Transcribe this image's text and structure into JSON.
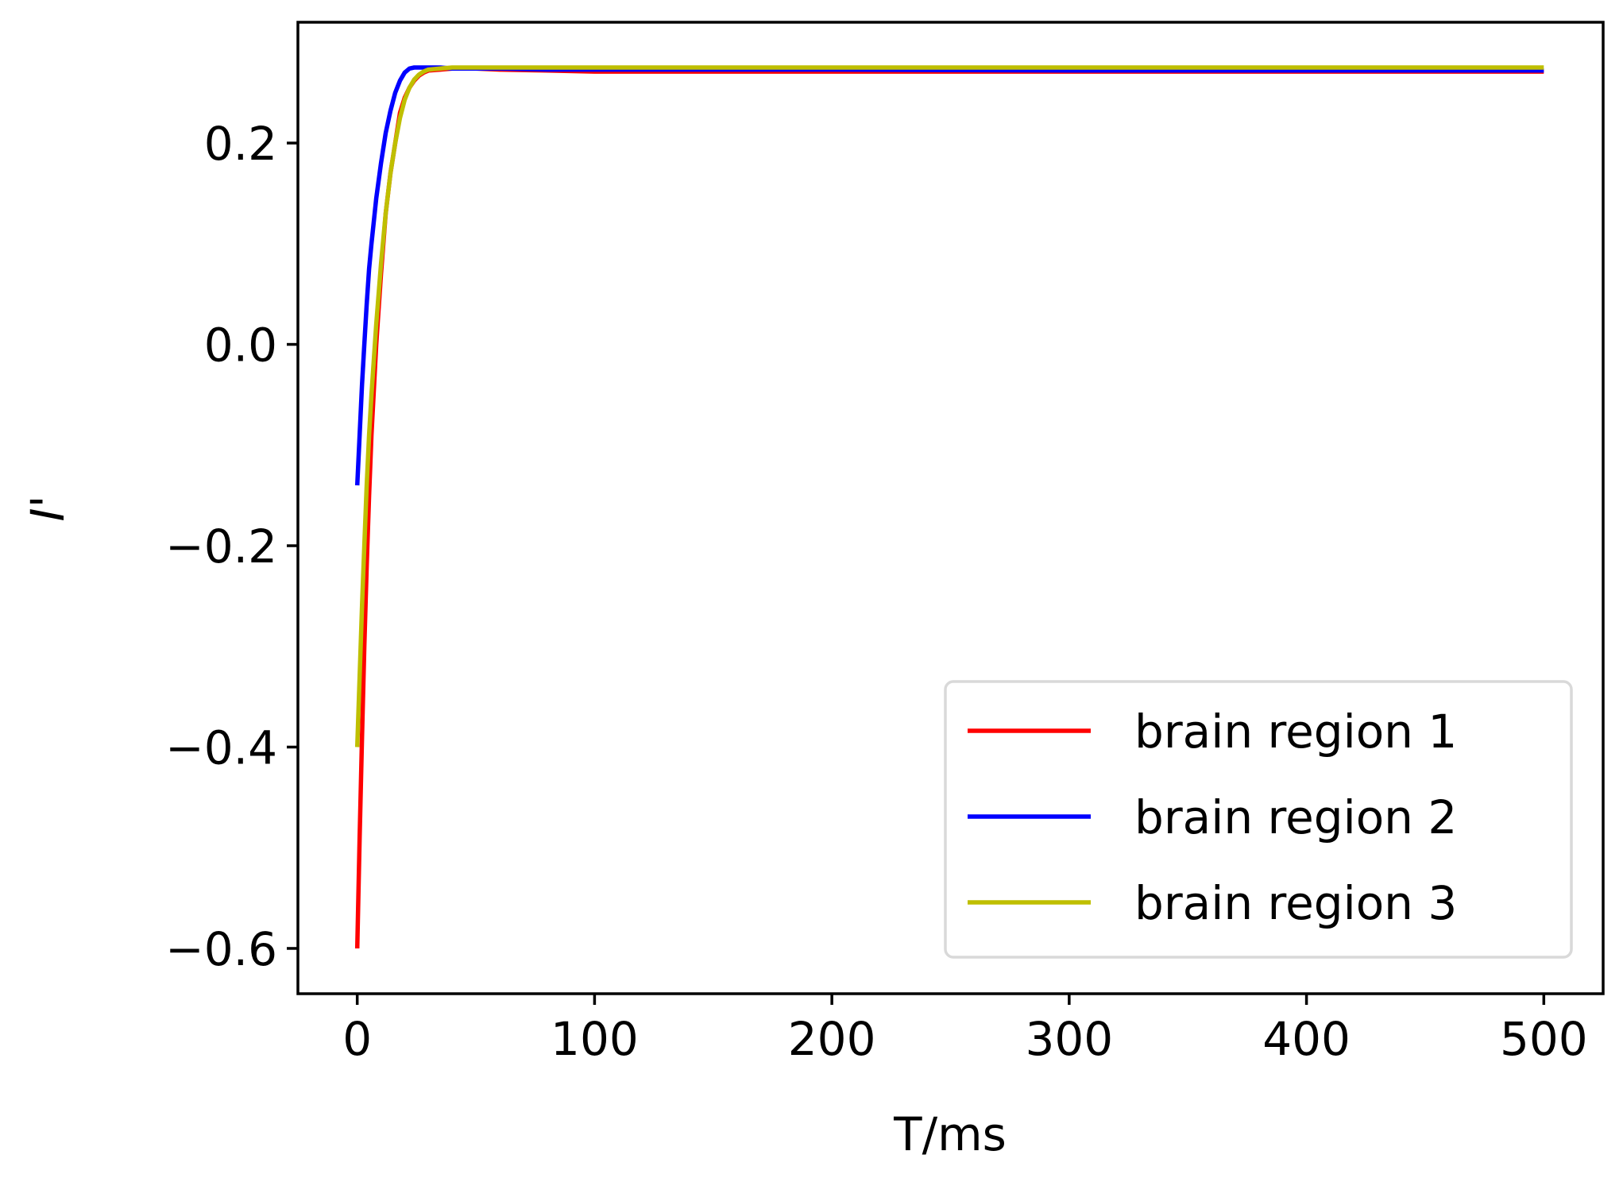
{
  "chart_data": {
    "type": "line",
    "title": "",
    "xlabel": "T/ms",
    "ylabel": "I'",
    "xlim": [
      -25,
      525
    ],
    "ylim": [
      -0.645,
      0.32
    ],
    "xticks": [
      0,
      100,
      200,
      300,
      400,
      500
    ],
    "xtick_labels": [
      "0",
      "100",
      "200",
      "300",
      "400",
      "500"
    ],
    "yticks": [
      -0.6,
      -0.4,
      -0.2,
      0.0,
      0.2
    ],
    "ytick_labels": [
      "−0.6",
      "−0.4",
      "−0.2",
      "0.0",
      "0.2"
    ],
    "grid": false,
    "legend_position": "lower-right",
    "series": [
      {
        "name": "brain region 1",
        "color": "#ff0000",
        "x": [
          0,
          1,
          2,
          3,
          4,
          5,
          6,
          8,
          10,
          12,
          14,
          16,
          18,
          20,
          22,
          24,
          26,
          28,
          30,
          35,
          40,
          50,
          60,
          80,
          100,
          150,
          200,
          300,
          400,
          500
        ],
        "y": [
          -0.6,
          -0.49,
          -0.39,
          -0.3,
          -0.22,
          -0.15,
          -0.09,
          0.0,
          0.07,
          0.13,
          0.17,
          0.2,
          0.23,
          0.245,
          0.255,
          0.262,
          0.267,
          0.27,
          0.272,
          0.273,
          0.274,
          0.274,
          0.273,
          0.272,
          0.271,
          0.271,
          0.271,
          0.271,
          0.271,
          0.271
        ]
      },
      {
        "name": "brain region 2",
        "color": "#0000ff",
        "x": [
          0,
          1,
          2,
          3,
          4,
          5,
          6,
          8,
          10,
          12,
          14,
          16,
          18,
          20,
          22,
          24,
          26,
          28,
          30,
          35,
          40,
          50,
          60,
          80,
          100,
          150,
          200,
          300,
          400,
          500
        ],
        "y": [
          -0.14,
          -0.09,
          -0.04,
          0.0,
          0.04,
          0.075,
          0.1,
          0.145,
          0.18,
          0.21,
          0.232,
          0.25,
          0.262,
          0.27,
          0.274,
          0.275,
          0.275,
          0.275,
          0.275,
          0.275,
          0.274,
          0.274,
          0.274,
          0.273,
          0.273,
          0.273,
          0.273,
          0.272,
          0.272,
          0.272
        ]
      },
      {
        "name": "brain region 3",
        "color": "#bfbf00",
        "x": [
          0,
          1,
          2,
          3,
          4,
          5,
          6,
          8,
          10,
          12,
          14,
          16,
          18,
          20,
          22,
          24,
          26,
          28,
          30,
          35,
          40,
          50,
          60,
          80,
          100,
          150,
          200,
          300,
          400,
          500
        ],
        "y": [
          -0.4,
          -0.33,
          -0.26,
          -0.2,
          -0.14,
          -0.09,
          -0.05,
          0.02,
          0.08,
          0.13,
          0.17,
          0.2,
          0.225,
          0.243,
          0.255,
          0.263,
          0.268,
          0.271,
          0.273,
          0.274,
          0.275,
          0.275,
          0.275,
          0.275,
          0.275,
          0.275,
          0.275,
          0.275,
          0.275,
          0.275
        ]
      }
    ]
  }
}
